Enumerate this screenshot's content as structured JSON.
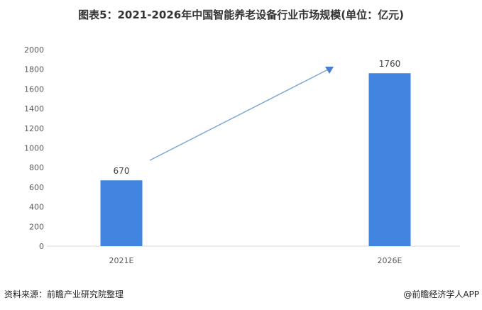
{
  "chart_data": {
    "type": "bar",
    "title": "图表5：2021-2026年中国智能养老设备行业市场规模(单位：亿元)",
    "categories": [
      "2021E",
      "2026E"
    ],
    "values": [
      670,
      1760
    ],
    "ylim": [
      0,
      2000
    ],
    "yticks": [
      0,
      200,
      400,
      600,
      800,
      1000,
      1200,
      1400,
      1600,
      1800,
      2000
    ],
    "grid": false,
    "bar_color": "#4285e0",
    "trend_arrow": true,
    "trend_arrow_color": "#7aa7d8"
  },
  "footer": {
    "source": "资料来源：前瞻产业研究院整理",
    "credit": "@前瞻经济学人APP"
  }
}
